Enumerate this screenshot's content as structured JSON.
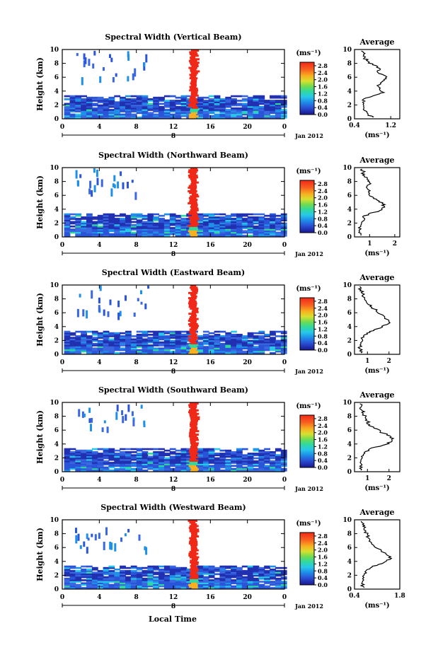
{
  "figure": {
    "xlabel": "Local Time",
    "ylabel": "Height (km)",
    "date_label": "Jan 2012",
    "unit_label": "(ms⁻¹)",
    "avg_title": "Average",
    "avg_unit": "(ms⁻¹)"
  },
  "chart_data": [
    {
      "type": "heatmap",
      "title": "Spectral Width (Vertical Beam)",
      "xlabel": "Local Time",
      "ylabel": "Height (km)",
      "xticks": [
        "0",
        "4",
        "8",
        "12",
        "16",
        "20",
        "0"
      ],
      "xlim": [
        0,
        24
      ],
      "yticks": [
        "0",
        "2",
        "4",
        "6",
        "8",
        "10"
      ],
      "ylim": [
        0,
        10
      ],
      "day_label": "8",
      "colorbar": {
        "ticks": [
          "0.0",
          "0.4",
          "0.8",
          "1.2",
          "1.6",
          "2.0",
          "2.4",
          "2.8"
        ],
        "range": [
          0,
          3.0
        ]
      },
      "average": {
        "xticks": [
          "0.4",
          "1.2"
        ],
        "xlim": [
          0.4,
          1.4
        ],
        "profile": [
          [
            0.8,
            0.2
          ],
          [
            0.7,
            0.6
          ],
          [
            0.62,
            1.2
          ],
          [
            0.6,
            1.8
          ],
          [
            0.58,
            2.4
          ],
          [
            0.65,
            3.0
          ],
          [
            0.85,
            3.4
          ],
          [
            1.05,
            3.8
          ],
          [
            0.95,
            4.3
          ],
          [
            0.9,
            4.8
          ],
          [
            1.0,
            5.3
          ],
          [
            1.1,
            5.8
          ],
          [
            1.05,
            6.3
          ],
          [
            0.9,
            6.8
          ],
          [
            0.95,
            7.3
          ],
          [
            0.8,
            7.8
          ],
          [
            0.7,
            8.3
          ],
          [
            0.62,
            8.8
          ],
          [
            0.6,
            9.3
          ],
          [
            0.55,
            9.8
          ]
        ]
      }
    },
    {
      "type": "heatmap",
      "title": "Spectral Width (Northward Beam)",
      "xlabel": "Local Time",
      "ylabel": "Height (km)",
      "xticks": [
        "0",
        "4",
        "8",
        "12",
        "16",
        "20",
        "0"
      ],
      "xlim": [
        0,
        24
      ],
      "yticks": [
        "0",
        "2",
        "4",
        "6",
        "8",
        "10"
      ],
      "ylim": [
        0,
        10
      ],
      "day_label": "8",
      "colorbar": {
        "ticks": [
          "0.0",
          "0.4",
          "0.8",
          "1.2",
          "1.6",
          "2.0",
          "2.4",
          "2.8"
        ],
        "range": [
          0,
          3.0
        ]
      },
      "average": {
        "xticks": [
          "1",
          "2"
        ],
        "xlim": [
          0.4,
          2.2
        ],
        "profile": [
          [
            0.65,
            0.2
          ],
          [
            0.6,
            0.8
          ],
          [
            0.65,
            1.5
          ],
          [
            0.7,
            2.2
          ],
          [
            0.75,
            2.8
          ],
          [
            0.95,
            3.3
          ],
          [
            1.4,
            3.8
          ],
          [
            1.6,
            4.3
          ],
          [
            1.5,
            4.8
          ],
          [
            1.3,
            5.3
          ],
          [
            1.1,
            5.8
          ],
          [
            1.0,
            6.3
          ],
          [
            0.95,
            6.8
          ],
          [
            0.9,
            7.3
          ],
          [
            1.0,
            7.8
          ],
          [
            0.9,
            8.3
          ],
          [
            0.8,
            8.8
          ],
          [
            0.75,
            9.3
          ],
          [
            0.7,
            9.8
          ]
        ]
      }
    },
    {
      "type": "heatmap",
      "title": "Spectral Width (Eastward Beam)",
      "xlabel": "Local Time",
      "ylabel": "Height (km)",
      "xticks": [
        "0",
        "4",
        "8",
        "12",
        "16",
        "20",
        "0"
      ],
      "xlim": [
        0,
        24
      ],
      "yticks": [
        "0",
        "2",
        "4",
        "6",
        "8",
        "10"
      ],
      "ylim": [
        0,
        10
      ],
      "day_label": "8",
      "colorbar": {
        "ticks": [
          "0.0",
          "0.4",
          "0.8",
          "1.2",
          "1.6",
          "2.0",
          "2.4",
          "2.8"
        ],
        "range": [
          0,
          3.0
        ]
      },
      "average": {
        "xticks": [
          "1",
          "2"
        ],
        "xlim": [
          0.4,
          2.5
        ],
        "profile": [
          [
            0.7,
            0.2
          ],
          [
            0.65,
            0.8
          ],
          [
            0.7,
            1.5
          ],
          [
            0.75,
            2.2
          ],
          [
            0.85,
            2.8
          ],
          [
            1.1,
            3.3
          ],
          [
            1.6,
            3.8
          ],
          [
            1.9,
            4.3
          ],
          [
            2.0,
            4.8
          ],
          [
            1.8,
            5.3
          ],
          [
            1.6,
            5.8
          ],
          [
            1.4,
            6.3
          ],
          [
            1.2,
            6.8
          ],
          [
            1.0,
            7.3
          ],
          [
            0.9,
            7.8
          ],
          [
            0.8,
            8.3
          ],
          [
            0.75,
            8.8
          ],
          [
            0.7,
            9.3
          ],
          [
            0.65,
            9.8
          ]
        ]
      }
    },
    {
      "type": "heatmap",
      "title": "Spectral Width (Southward Beam)",
      "xlabel": "Local Time",
      "ylabel": "Height (km)",
      "xticks": [
        "0",
        "4",
        "8",
        "12",
        "16",
        "20",
        "0"
      ],
      "xlim": [
        0,
        24
      ],
      "yticks": [
        "0",
        "2",
        "4",
        "6",
        "8",
        "10"
      ],
      "ylim": [
        0,
        10
      ],
      "day_label": "8",
      "colorbar": {
        "ticks": [
          "0.0",
          "0.4",
          "0.8",
          "1.2",
          "1.6",
          "2.0",
          "2.4",
          "2.8"
        ],
        "range": [
          0,
          3.0
        ]
      },
      "average": {
        "xticks": [
          "1",
          "2"
        ],
        "xlim": [
          0.4,
          2.5
        ],
        "profile": [
          [
            0.7,
            0.2
          ],
          [
            0.65,
            0.8
          ],
          [
            0.7,
            1.5
          ],
          [
            0.72,
            2.2
          ],
          [
            0.85,
            2.8
          ],
          [
            1.1,
            3.3
          ],
          [
            1.7,
            3.8
          ],
          [
            2.1,
            4.3
          ],
          [
            2.2,
            4.8
          ],
          [
            1.9,
            5.3
          ],
          [
            1.6,
            5.8
          ],
          [
            1.3,
            6.3
          ],
          [
            1.1,
            6.8
          ],
          [
            1.0,
            7.3
          ],
          [
            0.9,
            7.8
          ],
          [
            0.8,
            8.3
          ],
          [
            0.75,
            8.8
          ],
          [
            0.7,
            9.3
          ],
          [
            0.65,
            9.8
          ]
        ]
      }
    },
    {
      "type": "heatmap",
      "title": "Spectral Width (Westward Beam)",
      "xlabel": "Local Time",
      "ylabel": "Height (km)",
      "xticks": [
        "0",
        "4",
        "8",
        "12",
        "16",
        "20",
        "0"
      ],
      "xlim": [
        0,
        24
      ],
      "yticks": [
        "0",
        "2",
        "4",
        "6",
        "8",
        "10"
      ],
      "ylim": [
        0,
        10
      ],
      "day_label": "8",
      "colorbar": {
        "ticks": [
          "0.0",
          "0.4",
          "0.8",
          "1.2",
          "1.6",
          "2.0",
          "2.4",
          "2.8"
        ],
        "range": [
          0,
          3.0
        ]
      },
      "average": {
        "xticks": [
          "0.4",
          "1.8"
        ],
        "xlim": [
          0.4,
          1.8
        ],
        "profile": [
          [
            0.7,
            0.2
          ],
          [
            0.62,
            0.8
          ],
          [
            0.65,
            1.5
          ],
          [
            0.7,
            2.2
          ],
          [
            0.78,
            2.8
          ],
          [
            0.95,
            3.3
          ],
          [
            1.3,
            3.8
          ],
          [
            1.5,
            4.3
          ],
          [
            1.45,
            4.8
          ],
          [
            1.3,
            5.3
          ],
          [
            1.15,
            5.8
          ],
          [
            1.0,
            6.3
          ],
          [
            0.9,
            6.8
          ],
          [
            0.85,
            7.3
          ],
          [
            0.8,
            7.8
          ],
          [
            0.75,
            8.3
          ],
          [
            0.7,
            8.8
          ],
          [
            0.65,
            9.3
          ],
          [
            0.6,
            9.8
          ]
        ]
      }
    }
  ]
}
